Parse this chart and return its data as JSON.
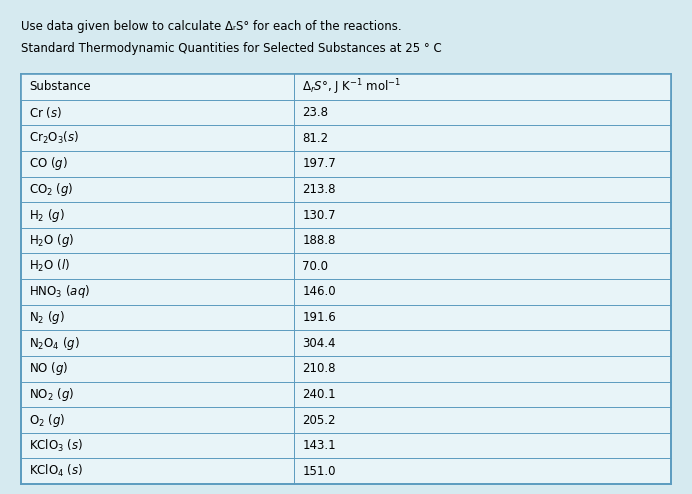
{
  "title_line1": "Use data given below to calculate ΔᵣS° for each of the reactions.",
  "title_line2": "Standard Thermodynamic Quantities for Selected Substances at 25 ° C",
  "header_col1": "Substance",
  "header_col2": "ΔᵣS°, J K⁻¹ mol⁻¹",
  "rows": [
    [
      "Cr (s)",
      "23.8"
    ],
    [
      "Cr₂O₃(s)",
      "81.2"
    ],
    [
      "CO (g)",
      "197.7"
    ],
    [
      "CO₂ (g)",
      "213.8"
    ],
    [
      "H₂ (g)",
      "130.7"
    ],
    [
      "H₂O (g)",
      "188.8"
    ],
    [
      "H₂O (l)",
      "70.0"
    ],
    [
      "HNO₃ (aq)",
      "146.0"
    ],
    [
      "N₂ (g)",
      "191.6"
    ],
    [
      "N₂O₄ (g)",
      "304.4"
    ],
    [
      "NO (g)",
      "210.8"
    ],
    [
      "NO₂ (g)",
      "240.1"
    ],
    [
      "O₂ (g)",
      "205.2"
    ],
    [
      "KClO₃ (s)",
      "143.1"
    ],
    [
      "KClO₄ (s)",
      "151.0"
    ]
  ],
  "bg_color": "#d6eaf0",
  "table_bg": "#e8f4f8",
  "border_color": "#5b9bbf",
  "header_bg": "#d0e8f0",
  "text_color": "#000000",
  "col_split": 0.42,
  "fig_width": 6.92,
  "fig_height": 4.94,
  "dpi": 100
}
